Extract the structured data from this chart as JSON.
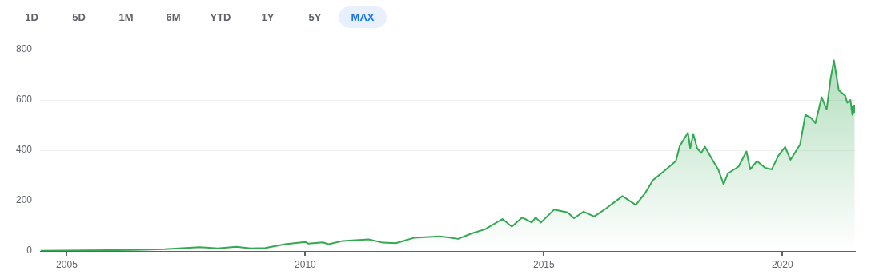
{
  "chart_data": {
    "type": "area",
    "annotations": [
      "1D",
      "5D",
      "1M",
      "6M",
      "YTD",
      "1Y",
      "5Y",
      "MAX"
    ],
    "x": [
      "2004-06-15",
      "2005-06-01",
      "2006-06-01",
      "2007-01-20",
      "2007-10-15",
      "2008-03-01",
      "2008-07-20",
      "2008-11-10",
      "2009-03-01",
      "2009-07-30",
      "2010-01-01",
      "2010-01-25",
      "2010-05-15",
      "2010-06-28",
      "2010-10-15",
      "2011-05-01",
      "2011-08-18",
      "2011-11-25",
      "2012-04-10",
      "2012-10-25",
      "2012-12-30",
      "2013-03-15",
      "2013-06-28",
      "2013-10-08",
      "2014-02-18",
      "2014-05-01",
      "2014-07-20",
      "2014-10-01",
      "2014-10-30",
      "2014-12-10",
      "2015-03-20",
      "2015-07-01",
      "2015-08-20",
      "2015-11-01",
      "2016-01-22",
      "2016-04-22",
      "2016-08-25",
      "2016-12-05",
      "2017-02-15",
      "2017-04-15",
      "2017-07-25",
      "2017-10-08",
      "2017-11-06",
      "2018-01-08",
      "2018-01-26",
      "2018-02-18",
      "2018-03-20",
      "2018-04-20",
      "2018-05-18",
      "2018-07-20",
      "2018-08-28",
      "2018-10-08",
      "2018-11-10",
      "2019-01-30",
      "2019-04-01",
      "2019-04-30",
      "2019-06-20",
      "2019-08-22",
      "2019-10-12",
      "2019-12-01",
      "2020-01-22",
      "2020-03-03",
      "2020-05-15",
      "2020-06-25",
      "2020-08-05",
      "2020-09-10",
      "2020-10-28",
      "2020-12-05",
      "2021-01-05",
      "2021-01-30",
      "2021-03-08",
      "2021-04-26",
      "2021-05-12",
      "2021-06-05",
      "2021-06-20",
      "2021-07-08"
    ],
    "series": [
      {
        "color": "#34a853",
        "values": [
          1,
          2,
          4,
          7,
          15,
          10,
          17,
          10,
          12,
          27,
          36,
          29,
          34,
          27,
          40,
          46,
          33,
          31,
          52,
          58,
          54,
          48,
          70,
          86,
          127,
          97,
          133,
          113,
          133,
          113,
          164,
          153,
          130,
          156,
          137,
          169,
          218,
          183,
          230,
          281,
          324,
          357,
          416,
          470,
          408,
          465,
          408,
          389,
          414,
          357,
          324,
          265,
          308,
          335,
          395,
          324,
          357,
          330,
          324,
          378,
          413,
          362,
          422,
          541,
          530,
          508,
          611,
          562,
          687,
          757,
          638,
          617,
          589,
          600,
          541,
          565
        ]
      }
    ],
    "xlim": [
      "2004-06-10",
      "2021-07-10"
    ],
    "xticks": [
      "2005",
      "2010",
      "2015",
      "2020"
    ],
    "ylim": [
      0,
      800
    ],
    "yticks": [
      0,
      200,
      400,
      600,
      800
    ],
    "grid": "y",
    "legend": false
  }
}
